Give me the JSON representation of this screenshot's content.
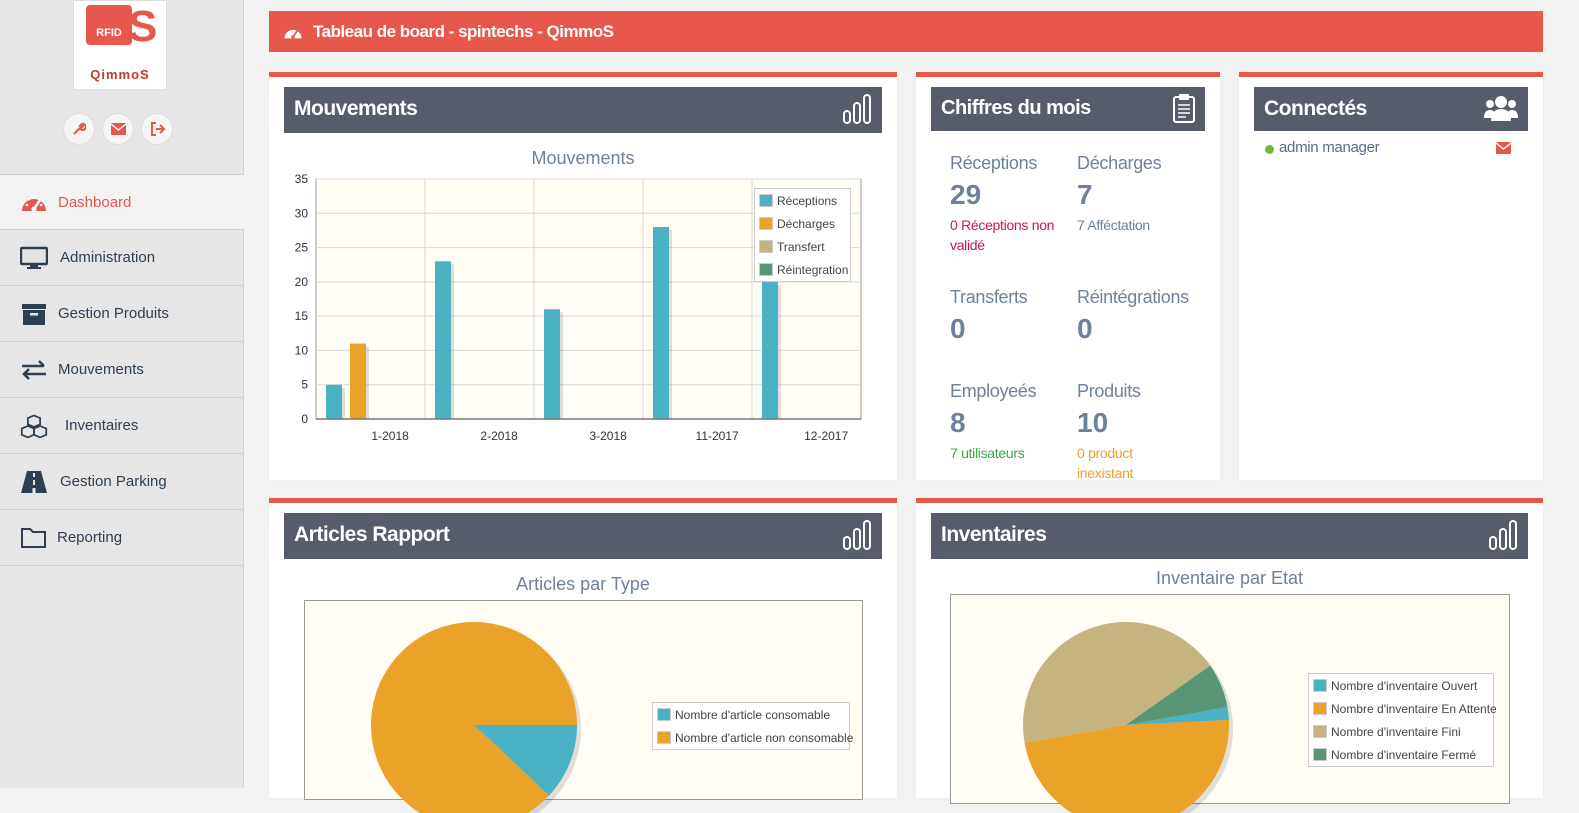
{
  "app": {
    "logo_text": "QimmoS",
    "logo_badge": "RFID"
  },
  "sidebar": {
    "items": [
      {
        "label": "Dashboard",
        "icon": "gauge-icon"
      },
      {
        "label": "Administration",
        "icon": "monitor-icon"
      },
      {
        "label": "Gestion Produits",
        "icon": "archive-icon"
      },
      {
        "label": "Mouvements",
        "icon": "exchange-icon"
      },
      {
        "label": "Inventaires",
        "icon": "cubes-icon"
      },
      {
        "label": "Gestion Parking",
        "icon": "road-icon"
      },
      {
        "label": "Reporting",
        "icon": "folder-icon"
      }
    ]
  },
  "topbar": {
    "title": "Tableau de board - spintechs - QimmoS"
  },
  "mouvements": {
    "panel_title": "Mouvements",
    "chart_title": "Mouvements"
  },
  "chiffres": {
    "panel_title": "Chiffres du mois",
    "receptions": {
      "label": "Réceptions",
      "value": "29",
      "sub": "0 Réceptions non validé"
    },
    "decharges": {
      "label": "Décharges",
      "value": "7",
      "sub": "7 Afféctation"
    },
    "transferts": {
      "label": "Transferts",
      "value": "0"
    },
    "reintegrations": {
      "label": "Réintégrations",
      "value": "0"
    },
    "employes": {
      "label": "Employeés",
      "value": "8",
      "sub": "7 utilisateurs"
    },
    "produits": {
      "label": "Produits",
      "value": "10",
      "sub": "0 product inexistant"
    }
  },
  "connectes": {
    "panel_title": "Connectés",
    "users": [
      {
        "name": "admin manager"
      }
    ]
  },
  "articles": {
    "panel_title": "Articles Rapport",
    "chart_title": "Articles par Type"
  },
  "inventaires": {
    "panel_title": "Inventaires",
    "chart_title": "Inventaire par Etat"
  },
  "colors": {
    "accent": "#e8574c",
    "header_dark": "#575c6b",
    "receptions": "#4bb2c5",
    "decharges": "#eaa228",
    "transfert": "#c5b47f",
    "reintegration": "#579575",
    "green_text": "#3aa84a",
    "red_text": "#c9184a",
    "orange_text": "#eaa228"
  },
  "chart_data": [
    {
      "type": "bar",
      "title": "Mouvements",
      "categories": [
        "1-2018",
        "2-2018",
        "3-2018",
        "11-2017",
        "12-2017"
      ],
      "series": [
        {
          "name": "Réceptions",
          "values": [
            5,
            23,
            16,
            28,
            20
          ]
        },
        {
          "name": "Décharges",
          "values": [
            11,
            0,
            0,
            0,
            0
          ]
        },
        {
          "name": "Transfert",
          "values": [
            0,
            0,
            0,
            0,
            0
          ]
        },
        {
          "name": "Réintegration",
          "values": [
            0,
            0,
            0,
            0,
            0
          ]
        }
      ],
      "ylim": [
        0,
        35
      ],
      "yticks": [
        0,
        5,
        10,
        15,
        20,
        25,
        30,
        35
      ],
      "legend": "top-right",
      "grid": true
    },
    {
      "type": "pie",
      "title": "Articles par Type",
      "labels": [
        "Nombre d'article consomable",
        "Nombre d'article non consomable"
      ],
      "values": [
        12,
        88
      ],
      "legend": "right"
    },
    {
      "type": "pie",
      "title": "Inventaire par Etat",
      "labels": [
        "Nombre d'inventaire Ouvert",
        "Nombre d'inventaire En Attente",
        "Nombre d'inventaire Fini",
        "Nombre d'inventaire Fermé"
      ],
      "values": [
        2,
        48,
        43,
        7
      ],
      "legend": "right"
    }
  ]
}
